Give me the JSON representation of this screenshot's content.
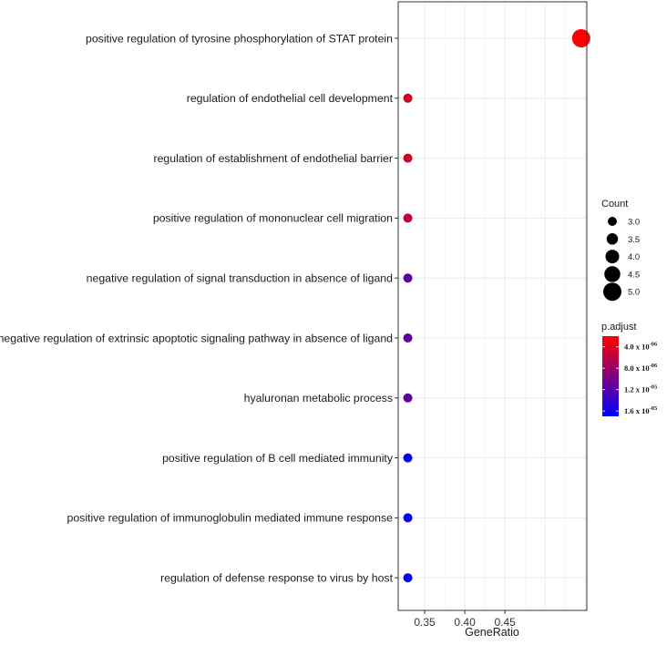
{
  "chart_data": {
    "type": "scatter",
    "title": "",
    "xlabel": "GeneRatio",
    "ylabel": "",
    "xlim": [
      0.317,
      0.552
    ],
    "x_ticks": [
      {
        "value": 0.35,
        "label": "0.35"
      },
      {
        "value": 0.4,
        "label": "0.40"
      },
      {
        "value": 0.45,
        "label": "0.45"
      }
    ],
    "grid": true,
    "terms": [
      {
        "label": "positive regulation of tyrosine phosphorylation of STAT protein",
        "gene_ratio": 0.545,
        "count": 5,
        "p_adjust": 2.1e-06
      },
      {
        "label": "regulation of endothelial cell development",
        "gene_ratio": 0.329,
        "count": 3,
        "p_adjust": 4.5e-06
      },
      {
        "label": "regulation of establishment of endothelial barrier",
        "gene_ratio": 0.329,
        "count": 3,
        "p_adjust": 4.5e-06
      },
      {
        "label": "positive regulation of mononuclear cell migration",
        "gene_ratio": 0.329,
        "count": 3,
        "p_adjust": 5.7e-06
      },
      {
        "label": "negative regulation of signal transduction in absence of ligand",
        "gene_ratio": 0.329,
        "count": 3,
        "p_adjust": 1.14e-05
      },
      {
        "label": "negative regulation of extrinsic apoptotic signaling pathway in absence of ligand",
        "gene_ratio": 0.329,
        "count": 3,
        "p_adjust": 1.14e-05
      },
      {
        "label": "hyaluronan metabolic process",
        "gene_ratio": 0.329,
        "count": 3,
        "p_adjust": 1.14e-05
      },
      {
        "label": "positive regulation of B cell mediated immunity",
        "gene_ratio": 0.329,
        "count": 3,
        "p_adjust": 1.68e-05
      },
      {
        "label": "positive regulation of immunoglobulin mediated immune response",
        "gene_ratio": 0.329,
        "count": 3,
        "p_adjust": 1.68e-05
      },
      {
        "label": "regulation of defense response to virus by host",
        "gene_ratio": 0.329,
        "count": 3,
        "p_adjust": 1.68e-05
      }
    ],
    "size_legend": {
      "title": "Count",
      "entries": [
        {
          "label": "3.0",
          "value": 3.0
        },
        {
          "label": "3.5",
          "value": 3.5
        },
        {
          "label": "4.0",
          "value": 4.0
        },
        {
          "label": "4.5",
          "value": 4.5
        },
        {
          "label": "5.0",
          "value": 5.0
        }
      ]
    },
    "color_legend": {
      "title": "p.adjust",
      "low_color": "#ff0000",
      "high_color": "#0000ff",
      "range": [
        2e-06,
        1.7e-05
      ],
      "ticks": [
        {
          "value": 4e-06,
          "mantissa": "4.0 x 10",
          "exponent": "-06"
        },
        {
          "value": 8e-06,
          "mantissa": "8.0 x 10",
          "exponent": "-06"
        },
        {
          "value": 1.2e-05,
          "mantissa": "1.2 x 10",
          "exponent": "-05"
        },
        {
          "value": 1.6e-05,
          "mantissa": "1.6 x 10",
          "exponent": "-05"
        }
      ]
    }
  }
}
